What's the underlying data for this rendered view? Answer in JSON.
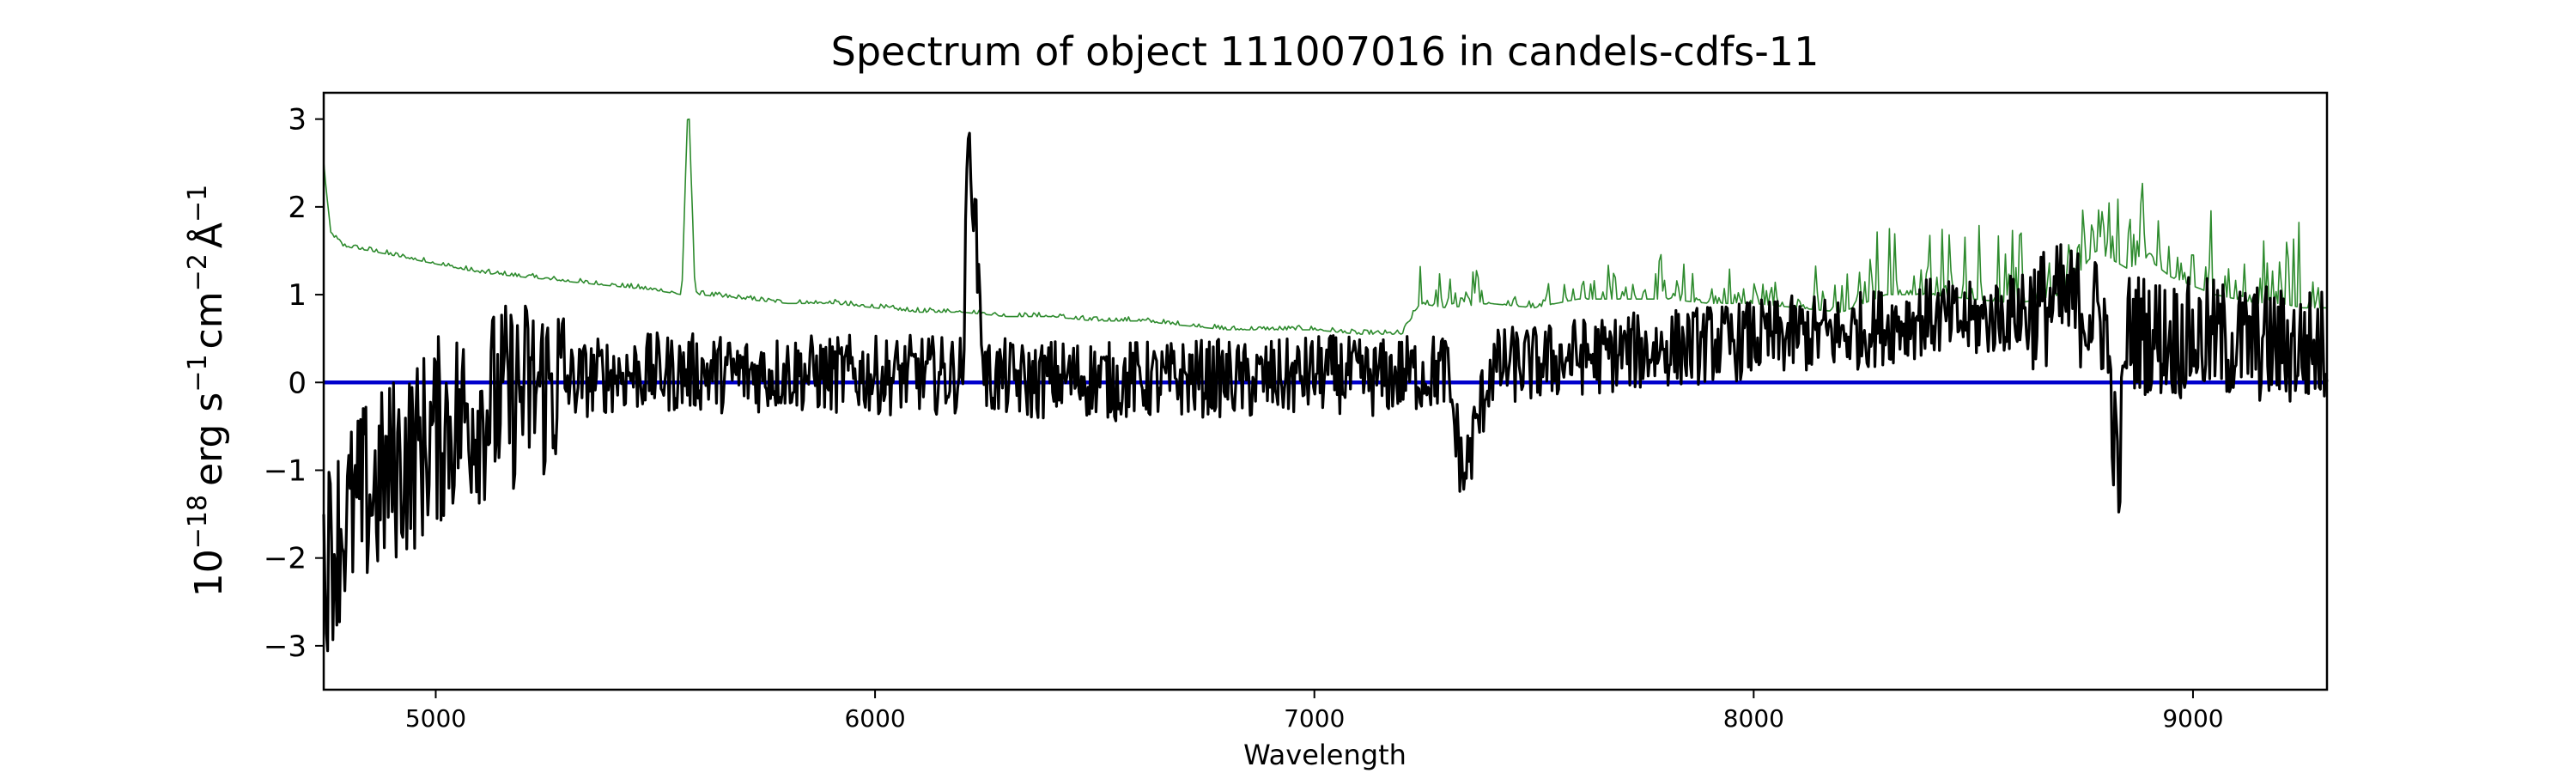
{
  "chart_data": {
    "type": "line",
    "title": "Spectrum of object 111007016 in candels-cdfs-11",
    "xlabel": "Wavelength",
    "ylabel_base": "10",
    "ylabel_exp": "−18",
    "ylabel_unit_1": "erg s",
    "ylabel_unit_1_exp": "−1",
    "ylabel_unit_2": "cm",
    "ylabel_unit_2_exp": "−2",
    "ylabel_unit_3": "Å",
    "ylabel_unit_3_exp": "−1",
    "xlim": [
      4745,
      9305
    ],
    "ylim": [
      -3.5,
      3.3
    ],
    "xticks": [
      5000,
      6000,
      7000,
      8000,
      9000
    ],
    "xtick_labels": [
      "5000",
      "6000",
      "7000",
      "8000",
      "9000"
    ],
    "yticks": [
      -3,
      -2,
      -1,
      0,
      1,
      2,
      3
    ],
    "ytick_labels": [
      "−3",
      "−2",
      "−1",
      "0",
      "1",
      "2",
      "3"
    ],
    "grid": false,
    "colors": {
      "flux": "#000000",
      "error": "#2e8b2e",
      "zero": "#0000cc",
      "axes": "#000000"
    },
    "series": [
      {
        "role": "flux",
        "x": [
          4750,
          4780,
          4810,
          4840,
          4870,
          4900,
          4930,
          4960,
          4990,
          5020,
          5050,
          5100,
          5150,
          5200,
          5250,
          5300,
          5350,
          5400,
          5450,
          5500,
          5550,
          5600,
          5650,
          5700,
          5750,
          5800,
          5850,
          5900,
          5950,
          6000,
          6050,
          6100,
          6150,
          6200,
          6213,
          6250,
          6300,
          6350,
          6400,
          6450,
          6500,
          6550,
          6600,
          6650,
          6700,
          6750,
          6800,
          6850,
          6900,
          6950,
          7000,
          7050,
          7100,
          7150,
          7200,
          7250,
          7300,
          7340,
          7400,
          7450,
          7500,
          7550,
          7600,
          7650,
          7700,
          7750,
          7800,
          7850,
          7900,
          7950,
          8000,
          8050,
          8100,
          8150,
          8200,
          8250,
          8300,
          8350,
          8400,
          8450,
          8500,
          8550,
          8600,
          8650,
          8700,
          8750,
          8800,
          8830,
          8850,
          8900,
          8950,
          9000,
          9050,
          9100,
          9150,
          9200,
          9250,
          9300
        ],
        "y": [
          -2.0,
          -1.7,
          -1.5,
          -1.3,
          -1.2,
          -1.0,
          -0.9,
          -0.8,
          -0.6,
          -0.5,
          -0.4,
          -0.3,
          -0.2,
          -0.1,
          -0.05,
          0.0,
          0.05,
          0.1,
          0.1,
          0.12,
          0.1,
          0.12,
          0.1,
          0.1,
          0.1,
          0.12,
          0.1,
          0.08,
          0.1,
          0.08,
          0.08,
          0.1,
          0.08,
          0.1,
          3.0,
          0.05,
          0.05,
          0.0,
          0.05,
          0.05,
          0.05,
          0.0,
          0.05,
          0.0,
          0.05,
          0.05,
          0.05,
          0.0,
          0.05,
          0.05,
          0.1,
          0.1,
          0.05,
          0.05,
          0.1,
          0.1,
          0.15,
          -1.1,
          0.15,
          0.2,
          0.2,
          0.25,
          0.3,
          0.3,
          0.35,
          0.35,
          0.4,
          0.4,
          0.45,
          0.45,
          0.5,
          0.5,
          0.55,
          0.55,
          0.55,
          0.6,
          0.65,
          0.7,
          0.75,
          0.7,
          0.7,
          0.75,
          0.8,
          0.85,
          0.9,
          0.85,
          0.7,
          -1.2,
          0.6,
          0.55,
          0.5,
          0.5,
          0.5,
          0.45,
          0.45,
          0.4,
          0.4,
          0.4
        ]
      },
      {
        "role": "error",
        "x": [
          4745,
          4760,
          4790,
          4850,
          4900,
          4950,
          5000,
          5100,
          5200,
          5300,
          5400,
          5500,
          5560,
          5575,
          5590,
          5600,
          5700,
          5800,
          5900,
          6000,
          6100,
          6200,
          6300,
          6400,
          6500,
          6600,
          6700,
          6800,
          6900,
          7000,
          7100,
          7200,
          7240,
          7300,
          7400,
          7500,
          7600,
          7700,
          7800,
          7900,
          8000,
          8100,
          8200,
          8300,
          8400,
          8500,
          8600,
          8700,
          8780,
          8850,
          8900,
          8950,
          9000,
          9050,
          9100,
          9150,
          9200,
          9250,
          9300
        ],
        "y": [
          2.5,
          1.7,
          1.55,
          1.5,
          1.45,
          1.4,
          1.35,
          1.25,
          1.2,
          1.15,
          1.1,
          1.05,
          1.0,
          3.3,
          1.05,
          1.0,
          0.95,
          0.9,
          0.9,
          0.85,
          0.8,
          0.8,
          0.75,
          0.75,
          0.7,
          0.7,
          0.65,
          0.6,
          0.6,
          0.6,
          0.55,
          0.55,
          0.9,
          0.85,
          0.9,
          0.85,
          0.95,
          0.95,
          0.95,
          0.9,
          0.9,
          0.85,
          0.8,
          1.0,
          1.0,
          0.95,
          0.9,
          1.0,
          1.5,
          1.3,
          1.4,
          1.2,
          1.1,
          1.0,
          0.95,
          0.9,
          0.9,
          0.85,
          0.85
        ]
      },
      {
        "role": "zero",
        "x": [
          4745,
          9305
        ],
        "y": [
          0,
          0
        ]
      }
    ]
  }
}
